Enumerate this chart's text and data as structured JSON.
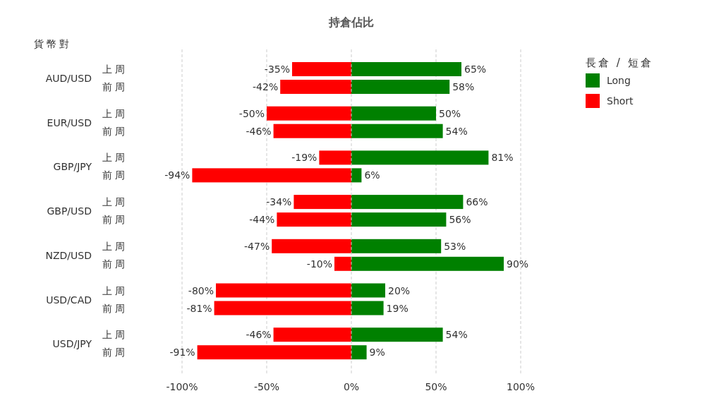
{
  "chart_data": {
    "type": "bar",
    "orientation": "horizontal",
    "stacked": true,
    "title": "持倉佔比",
    "ylabel": "貨幣對",
    "legend_title": "長倉 / 短倉",
    "categories": [
      "上周",
      "前周",
      "上周",
      "前周",
      "上周",
      "前周",
      "上周",
      "前周",
      "上周",
      "前周",
      "上周",
      "前周",
      "上周",
      "前周"
    ],
    "annotations": [
      "AUD/USD",
      "EUR/USD",
      "GBP/JPY",
      "GBP/USD",
      "NZD/USD",
      "USD/CAD",
      "USD/JPY"
    ],
    "series": [
      {
        "name": "Long",
        "color": "#008000",
        "values": [
          65,
          58,
          50,
          54,
          81,
          6,
          66,
          56,
          53,
          90,
          20,
          19,
          54,
          9
        ],
        "value_labels": [
          "65%",
          "58%",
          "50%",
          "54%",
          "81%",
          "6%",
          "66%",
          "56%",
          "53%",
          "90%",
          "20%",
          "19%",
          "54%",
          "9%"
        ]
      },
      {
        "name": "Short",
        "color": "#ff0000",
        "values": [
          -35,
          -42,
          -50,
          -46,
          -19,
          -94,
          -34,
          -44,
          -47,
          -10,
          -80,
          -81,
          -46,
          -91
        ],
        "value_labels": [
          "-35%",
          "-42%",
          "-50%",
          "-46%",
          "-19%",
          "-94%",
          "-34%",
          "-44%",
          "-47%",
          "-10%",
          "-80%",
          "-81%",
          "-46%",
          "-91%"
        ]
      }
    ],
    "xlim": [
      -100,
      100
    ],
    "xticks": [
      {
        "value": -100,
        "label": "-100%"
      },
      {
        "value": -50,
        "label": "-50%"
      },
      {
        "value": 0,
        "label": "0%"
      },
      {
        "value": 50,
        "label": "50%"
      },
      {
        "value": 100,
        "label": "100%"
      }
    ],
    "grid": "x",
    "legend": "top right"
  }
}
